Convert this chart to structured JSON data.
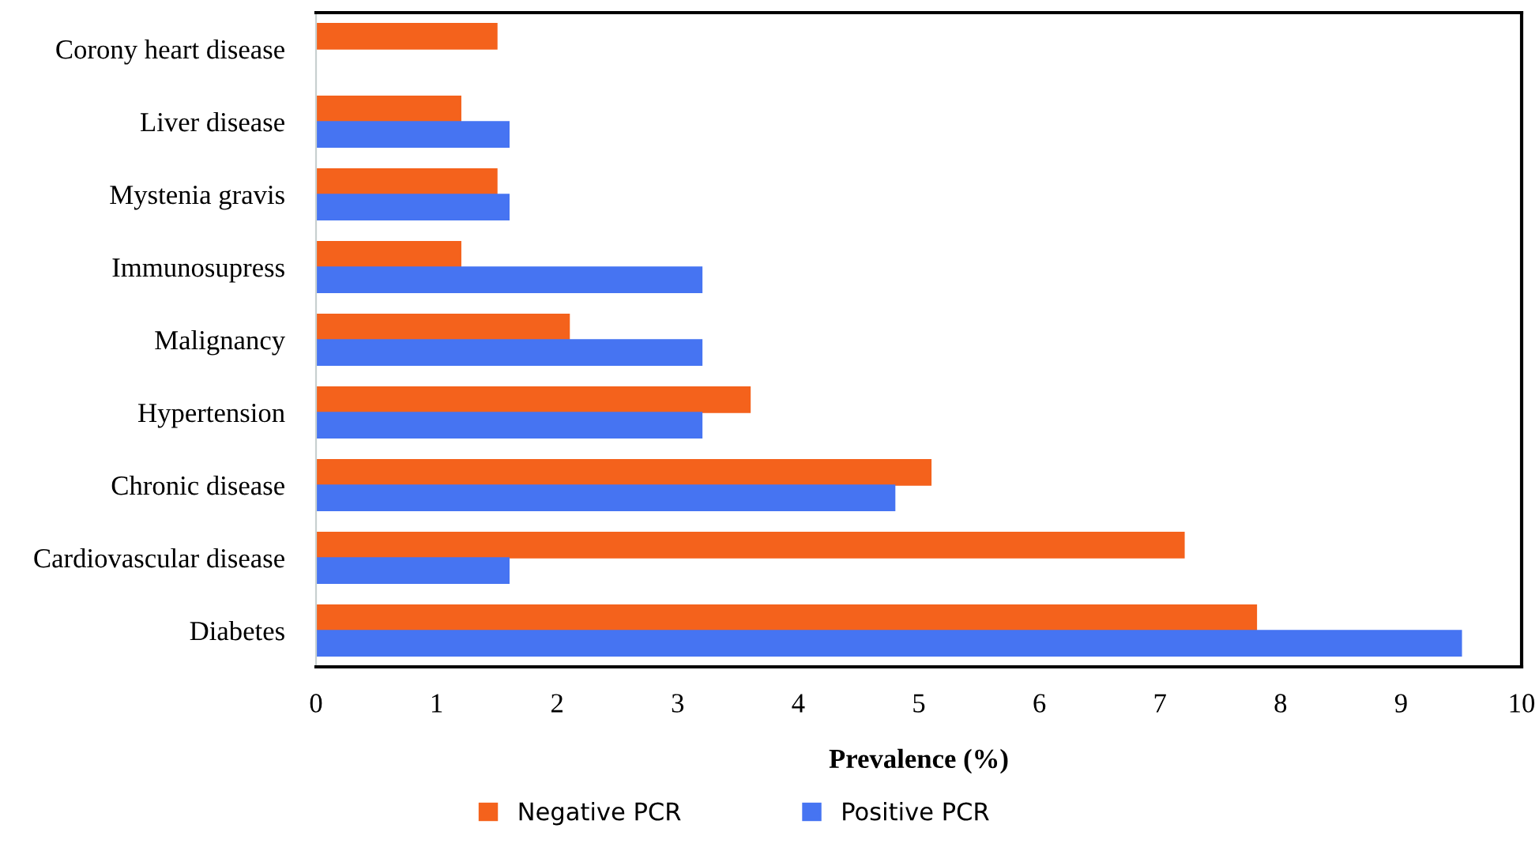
{
  "chart_data": {
    "type": "bar",
    "orientation": "horizontal",
    "xlabel": "Prevalence (%)",
    "categories": [
      "Corony heart disease",
      "Liver disease",
      "Mystenia gravis",
      "Immunosupress",
      "Malignancy",
      "Hypertension",
      "Chronic disease",
      "Cardiovascular disease",
      "Diabetes"
    ],
    "series": [
      {
        "name": "Negative PCR",
        "color": "#f4621c",
        "values": [
          1.5,
          1.2,
          1.5,
          1.2,
          2.1,
          3.6,
          5.1,
          7.2,
          7.8
        ]
      },
      {
        "name": "Positive PCR",
        "color": "#4674f2",
        "values": [
          null,
          1.6,
          1.6,
          3.2,
          3.2,
          3.2,
          4.8,
          1.6,
          9.5
        ]
      }
    ],
    "xlim": [
      0,
      10
    ],
    "xticks": [
      0,
      1,
      2,
      3,
      4,
      5,
      6,
      7,
      8,
      9,
      10
    ],
    "grid": false,
    "legend": "bottom"
  }
}
